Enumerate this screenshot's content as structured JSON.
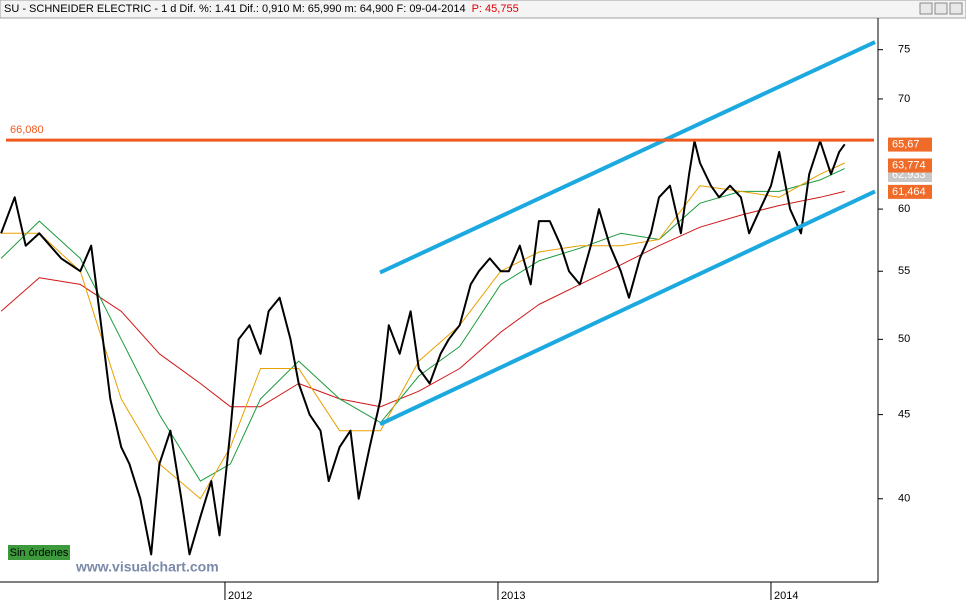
{
  "chart_data": {
    "type": "line",
    "title": "SU - SCHNEIDER ELECTRIC - 1 d  Dif. %: 1.41  Dif.: 0,910  M: 65,990  m: 64,900  F: 09-04-2014",
    "title_extra": "P: 45,755",
    "log": true,
    "xlim": [
      2011.176,
      2014.392
    ],
    "xticks": [
      2012,
      2013,
      2014
    ],
    "ylim": [
      35.6,
      78.4
    ],
    "yticks": [
      40,
      45,
      50,
      55,
      60,
      70,
      75
    ],
    "series": [
      {
        "color": "#000000",
        "width": 2,
        "x": [
          2011.18,
          2011.23,
          2011.27,
          2011.32,
          2011.4,
          2011.47,
          2011.51,
          2011.54,
          2011.58,
          2011.62,
          2011.65,
          2011.69,
          2011.73,
          2011.76,
          2011.8,
          2011.84,
          2011.87,
          2011.91,
          2011.95,
          2011.98,
          2012.02,
          2012.05,
          2012.09,
          2012.13,
          2012.16,
          2012.2,
          2012.24,
          2012.27,
          2012.31,
          2012.35,
          2012.38,
          2012.42,
          2012.46,
          2012.49,
          2012.53,
          2012.57,
          2012.6,
          2012.64,
          2012.68,
          2012.71,
          2012.75,
          2012.79,
          2012.82,
          2012.86,
          2012.9,
          2012.93,
          2012.97,
          2013.01,
          2013.04,
          2013.08,
          2013.12,
          2013.15,
          2013.19,
          2013.23,
          2013.26,
          2013.3,
          2013.34,
          2013.37,
          2013.41,
          2013.45,
          2013.48,
          2013.52,
          2013.56,
          2013.59,
          2013.63,
          2013.67,
          2013.7,
          2013.72,
          2013.74,
          2013.78,
          2013.81,
          2013.85,
          2013.89,
          2013.92,
          2013.96,
          2014.0,
          2014.03,
          2014.07,
          2014.11,
          2014.14,
          2014.18,
          2014.22,
          2014.25,
          2014.27
        ],
        "values": [
          58,
          61,
          57,
          58,
          56,
          55,
          57,
          52,
          46,
          43,
          42,
          40,
          37,
          42,
          44,
          40,
          37,
          39,
          41,
          38,
          44,
          50,
          51,
          49,
          52,
          53,
          50,
          47,
          45,
          44,
          41,
          43,
          44,
          40,
          43,
          46,
          51,
          49,
          52,
          48,
          47,
          49,
          50,
          51,
          54,
          55,
          56,
          55,
          55,
          57,
          54,
          59,
          59,
          57,
          55,
          54,
          57,
          60,
          57,
          55,
          53,
          56,
          58,
          61,
          62,
          58,
          63,
          66,
          64,
          62,
          61,
          62,
          61,
          58,
          60,
          62,
          65,
          60,
          58,
          63,
          66,
          63,
          65,
          65.7
        ]
      },
      {
        "color": "#e8a000",
        "width": 1,
        "x": [
          2011.18,
          2011.32,
          2011.47,
          2011.62,
          2011.76,
          2011.91,
          2012.02,
          2012.13,
          2012.27,
          2012.42,
          2012.57,
          2012.71,
          2012.86,
          2013.01,
          2013.15,
          2013.3,
          2013.45,
          2013.59,
          2013.74,
          2013.89,
          2014.03,
          2014.18,
          2014.27
        ],
        "values": [
          58,
          58,
          55,
          46,
          42,
          40,
          43,
          48,
          48,
          44,
          44,
          48.5,
          51,
          55,
          56.5,
          57,
          57,
          57.5,
          62,
          61.5,
          61,
          63,
          64
        ]
      },
      {
        "color": "#1a9a3a",
        "width": 1,
        "x": [
          2011.18,
          2011.32,
          2011.47,
          2011.62,
          2011.76,
          2011.91,
          2012.02,
          2012.13,
          2012.27,
          2012.42,
          2012.57,
          2012.71,
          2012.86,
          2013.01,
          2013.15,
          2013.3,
          2013.45,
          2013.59,
          2013.74,
          2013.89,
          2014.03,
          2014.18,
          2014.27
        ],
        "values": [
          56,
          59,
          56,
          50,
          45,
          41,
          42,
          46,
          48.5,
          46,
          44.5,
          47.5,
          49.5,
          54,
          55.8,
          56.8,
          58,
          57.5,
          60.5,
          61.5,
          61.5,
          62.5,
          63.5
        ]
      },
      {
        "color": "#d01818",
        "width": 1,
        "x": [
          2011.18,
          2011.32,
          2011.47,
          2011.62,
          2011.76,
          2011.91,
          2012.02,
          2012.13,
          2012.27,
          2012.42,
          2012.57,
          2012.71,
          2012.86,
          2013.01,
          2013.15,
          2013.3,
          2013.45,
          2013.59,
          2013.74,
          2013.89,
          2014.03,
          2014.18,
          2014.27
        ],
        "values": [
          52,
          54.5,
          54,
          52,
          49,
          47,
          45.5,
          45.5,
          47,
          46,
          45.5,
          46.5,
          48,
          50.5,
          52.5,
          54,
          55.5,
          57,
          58.5,
          59.5,
          60.3,
          61,
          61.5
        ]
      }
    ],
    "channel_color": "#1ca9e0",
    "channel_lines": [
      {
        "x": [
          2012.568,
          2014.381
        ],
        "y": [
          54.9,
          75.8
        ]
      },
      {
        "x": [
          2012.568,
          2014.381
        ],
        "y": [
          44.4,
          61.5
        ]
      }
    ],
    "resistance": {
      "value": 66.08,
      "label": "66,080",
      "color": "#f05a1e"
    },
    "price_labels": [
      {
        "value": 65.67,
        "label": "65,67",
        "color": "#f06a28"
      },
      {
        "value": 62.933,
        "label": "62,933",
        "color": "#c8c8c8"
      },
      {
        "value": 63.774,
        "label": "63,774",
        "color": "#f06a28"
      },
      {
        "value": 61.464,
        "label": "61,464",
        "color": "#f06a28"
      }
    ],
    "status": "Sin órdenes",
    "watermark": "www.visualchart.com"
  }
}
